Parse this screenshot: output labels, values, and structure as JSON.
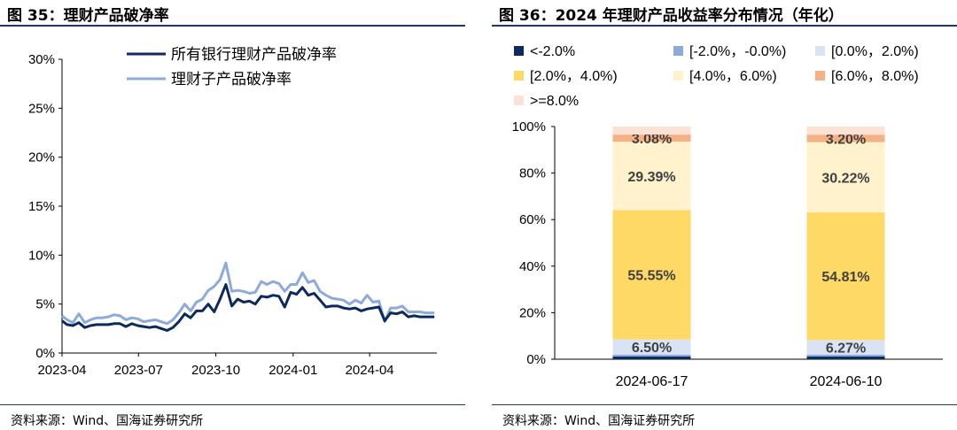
{
  "left": {
    "title": "图 35：理财产品破净率",
    "source": "资料来源：Wind、国海证券研究所",
    "chart_data": {
      "type": "line",
      "title": "理财产品破净率",
      "x_tick_labels": [
        "2023-04",
        "2023-07",
        "2023-10",
        "2024-01",
        "2024-04"
      ],
      "x_range": [
        "2023-04-01",
        "2024-06-20"
      ],
      "ylim": [
        0,
        30
      ],
      "y_ticks": [
        0,
        5,
        10,
        15,
        20,
        25,
        30
      ],
      "y_tick_labels": [
        "0%",
        "5%",
        "10%",
        "15%",
        "20%",
        "25%",
        "30%"
      ],
      "legend_position": "top-center",
      "grid": false,
      "series": [
        {
          "name": "所有银行理财产品破净率",
          "color": "#0d2a5f",
          "points": [
            [
              "2023-04-01",
              3.3
            ],
            [
              "2023-04-07",
              2.9
            ],
            [
              "2023-04-14",
              2.8
            ],
            [
              "2023-04-21",
              3.1
            ],
            [
              "2023-04-28",
              2.6
            ],
            [
              "2023-05-05",
              2.8
            ],
            [
              "2023-05-12",
              2.9
            ],
            [
              "2023-05-19",
              2.9
            ],
            [
              "2023-05-26",
              2.9
            ],
            [
              "2023-06-02",
              3.0
            ],
            [
              "2023-06-09",
              3.0
            ],
            [
              "2023-06-16",
              2.7
            ],
            [
              "2023-06-23",
              3.0
            ],
            [
              "2023-06-30",
              2.8
            ],
            [
              "2023-07-07",
              2.7
            ],
            [
              "2023-07-14",
              2.6
            ],
            [
              "2023-07-21",
              2.7
            ],
            [
              "2023-07-28",
              2.5
            ],
            [
              "2023-08-04",
              2.3
            ],
            [
              "2023-08-11",
              2.6
            ],
            [
              "2023-08-18",
              3.2
            ],
            [
              "2023-08-25",
              4.0
            ],
            [
              "2023-09-01",
              3.6
            ],
            [
              "2023-09-08",
              4.3
            ],
            [
              "2023-09-15",
              4.3
            ],
            [
              "2023-09-22",
              5.0
            ],
            [
              "2023-09-29",
              4.2
            ],
            [
              "2023-10-06",
              5.5
            ],
            [
              "2023-10-13",
              7.0
            ],
            [
              "2023-10-20",
              4.8
            ],
            [
              "2023-10-27",
              5.5
            ],
            [
              "2023-11-03",
              5.2
            ],
            [
              "2023-11-10",
              5.3
            ],
            [
              "2023-11-17",
              5.0
            ],
            [
              "2023-11-24",
              5.8
            ],
            [
              "2023-12-01",
              5.7
            ],
            [
              "2023-12-08",
              5.9
            ],
            [
              "2023-12-15",
              5.8
            ],
            [
              "2023-12-22",
              4.7
            ],
            [
              "2023-12-29",
              6.2
            ],
            [
              "2024-01-05",
              6.0
            ],
            [
              "2024-01-12",
              6.7
            ],
            [
              "2024-01-19",
              5.9
            ],
            [
              "2024-01-26",
              6.1
            ],
            [
              "2024-02-02",
              5.4
            ],
            [
              "2024-02-09",
              4.7
            ],
            [
              "2024-02-16",
              4.8
            ],
            [
              "2024-02-23",
              4.8
            ],
            [
              "2024-03-01",
              4.6
            ],
            [
              "2024-03-08",
              4.5
            ],
            [
              "2024-03-15",
              4.6
            ],
            [
              "2024-03-22",
              4.3
            ],
            [
              "2024-03-29",
              4.5
            ],
            [
              "2024-04-05",
              4.6
            ],
            [
              "2024-04-12",
              4.7
            ],
            [
              "2024-04-19",
              3.3
            ],
            [
              "2024-04-26",
              4.1
            ],
            [
              "2024-05-03",
              4.0
            ],
            [
              "2024-05-10",
              4.2
            ],
            [
              "2024-05-17",
              3.7
            ],
            [
              "2024-05-24",
              3.8
            ],
            [
              "2024-05-31",
              3.7
            ],
            [
              "2024-06-07",
              3.7
            ],
            [
              "2024-06-17",
              3.7
            ]
          ]
        },
        {
          "name": "理财子产品破净率",
          "color": "#8eaadb",
          "points": [
            [
              "2023-04-01",
              3.8
            ],
            [
              "2023-04-07",
              3.4
            ],
            [
              "2023-04-14",
              3.1
            ],
            [
              "2023-04-21",
              4.0
            ],
            [
              "2023-04-28",
              3.1
            ],
            [
              "2023-05-05",
              3.4
            ],
            [
              "2023-05-12",
              3.6
            ],
            [
              "2023-05-19",
              3.6
            ],
            [
              "2023-05-26",
              3.7
            ],
            [
              "2023-06-02",
              3.9
            ],
            [
              "2023-06-09",
              3.8
            ],
            [
              "2023-06-16",
              3.4
            ],
            [
              "2023-06-23",
              3.6
            ],
            [
              "2023-06-30",
              3.5
            ],
            [
              "2023-07-07",
              3.2
            ],
            [
              "2023-07-14",
              3.3
            ],
            [
              "2023-07-21",
              3.4
            ],
            [
              "2023-07-28",
              3.2
            ],
            [
              "2023-08-04",
              3.0
            ],
            [
              "2023-08-11",
              3.4
            ],
            [
              "2023-08-18",
              4.1
            ],
            [
              "2023-08-25",
              5.0
            ],
            [
              "2023-09-01",
              4.3
            ],
            [
              "2023-09-08",
              5.2
            ],
            [
              "2023-09-15",
              5.5
            ],
            [
              "2023-09-22",
              6.4
            ],
            [
              "2023-09-29",
              6.8
            ],
            [
              "2023-10-06",
              7.5
            ],
            [
              "2023-10-13",
              9.2
            ],
            [
              "2023-10-20",
              6.3
            ],
            [
              "2023-10-27",
              6.4
            ],
            [
              "2023-11-03",
              6.3
            ],
            [
              "2023-11-10",
              6.1
            ],
            [
              "2023-11-17",
              6.2
            ],
            [
              "2023-11-24",
              7.3
            ],
            [
              "2023-12-01",
              7.0
            ],
            [
              "2023-12-08",
              7.3
            ],
            [
              "2023-12-15",
              7.1
            ],
            [
              "2023-12-22",
              6.3
            ],
            [
              "2023-12-29",
              7.0
            ],
            [
              "2024-01-05",
              7.0
            ],
            [
              "2024-01-12",
              8.2
            ],
            [
              "2024-01-19",
              7.2
            ],
            [
              "2024-01-26",
              7.4
            ],
            [
              "2024-02-02",
              6.3
            ],
            [
              "2024-02-09",
              5.9
            ],
            [
              "2024-02-16",
              5.6
            ],
            [
              "2024-02-23",
              5.5
            ],
            [
              "2024-03-01",
              5.4
            ],
            [
              "2024-03-08",
              5.0
            ],
            [
              "2024-03-15",
              5.4
            ],
            [
              "2024-03-22",
              5.1
            ],
            [
              "2024-03-29",
              5.9
            ],
            [
              "2024-04-05",
              5.2
            ],
            [
              "2024-04-12",
              5.3
            ],
            [
              "2024-04-19",
              3.2
            ],
            [
              "2024-04-26",
              4.6
            ],
            [
              "2024-05-03",
              4.6
            ],
            [
              "2024-05-10",
              4.8
            ],
            [
              "2024-05-17",
              4.2
            ],
            [
              "2024-05-24",
              4.2
            ],
            [
              "2024-05-31",
              4.2
            ],
            [
              "2024-06-07",
              4.1
            ],
            [
              "2024-06-17",
              4.1
            ]
          ]
        }
      ]
    }
  },
  "right": {
    "title": "图 36：2024 年理财产品收益率分布情况（年化）",
    "source": "资料来源：Wind、国海证券研究所",
    "chart_data": {
      "type": "bar",
      "stacked": true,
      "title": "2024 年理财产品收益率分布情况（年化）",
      "categories": [
        "2024-06-17",
        "2024-06-10"
      ],
      "ylim": [
        0,
        100
      ],
      "y_ticks": [
        0,
        20,
        40,
        60,
        80,
        100
      ],
      "y_tick_labels": [
        "0%",
        "20%",
        "40%",
        "60%",
        "80%",
        "100%"
      ],
      "legend_position": "top",
      "grid": false,
      "series": [
        {
          "name": "<-2.0%",
          "color": "#0d2a5f",
          "values": [
            1.2,
            1.2
          ]
        },
        {
          "name": "[-2.0%，-0.0%)",
          "color": "#8eaadb",
          "values": [
            0.8,
            0.8
          ]
        },
        {
          "name": "[0.0%，2.0%)",
          "color": "#dae3f3",
          "values": [
            6.5,
            6.27
          ],
          "labels": [
            "6.50%",
            "6.27%"
          ]
        },
        {
          "name": "[2.0%，4.0%)",
          "color": "#ffd966",
          "values": [
            55.55,
            54.81
          ],
          "labels": [
            "55.55%",
            "54.81%"
          ]
        },
        {
          "name": "[4.0%，6.0%)",
          "color": "#fff2cc",
          "values": [
            29.39,
            30.22
          ],
          "labels": [
            "29.39%",
            "30.22%"
          ]
        },
        {
          "name": "[6.0%，8.0%)",
          "color": "#f4b183",
          "values": [
            3.08,
            3.2
          ],
          "labels": [
            "3.08%",
            "3.20%"
          ]
        },
        {
          "name": ">=8.0%",
          "color": "#fbe2d5",
          "values": [
            3.48,
            3.5
          ]
        }
      ]
    }
  }
}
